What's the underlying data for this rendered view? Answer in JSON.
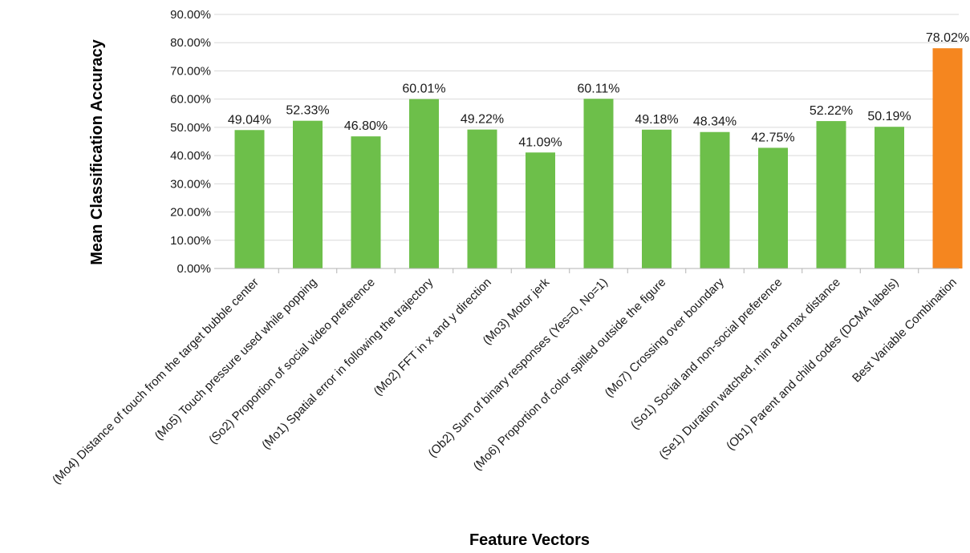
{
  "chart_data": {
    "type": "bar",
    "title": "",
    "xlabel": "Feature Vectors",
    "ylabel": "Mean Classification Accuracy",
    "ylim": [
      0,
      90
    ],
    "y_ticks": [
      "0.00%",
      "10.00%",
      "20.00%",
      "30.00%",
      "40.00%",
      "50.00%",
      "60.00%",
      "70.00%",
      "80.00%",
      "90.00%"
    ],
    "grid": true,
    "legend": "none",
    "categories": [
      "(Mo4) Distance of touch from the target bubble center",
      "(Mo5) Touch pressure used while popping",
      "(So2) Proportion of social video preference",
      "(Mo1) Spatial error in following the trajectory",
      "(Mo2) FFT in x and y direction",
      "(Mo3) Motor jerk",
      "(Ob2) Sum of binary responses (Yes=0, No=1)",
      "(Mo6) Proportion of color spilled outside the figure",
      "(Mo7) Crossing over boundary",
      "(So1) Social and non-social preference",
      "(Se1) Duration watched, min and max distance",
      "(Ob1) Parent and child codes (DCMA labels)",
      "Best Variable Combination"
    ],
    "values": [
      49.04,
      52.33,
      46.8,
      60.01,
      49.22,
      41.09,
      60.11,
      49.18,
      48.34,
      42.75,
      52.22,
      50.19,
      78.02
    ],
    "data_labels": [
      "49.04%",
      "52.33%",
      "46.80%",
      "60.01%",
      "49.22%",
      "41.09%",
      "60.11%",
      "49.18%",
      "48.34%",
      "42.75%",
      "52.22%",
      "50.19%",
      "78.02%"
    ],
    "colors": {
      "default_bar": "#6dbf4a",
      "highlight_bar": "#f5861f",
      "grid": "#d9d9d9",
      "axis": "#b3b3b3"
    },
    "highlight_index": 12
  }
}
